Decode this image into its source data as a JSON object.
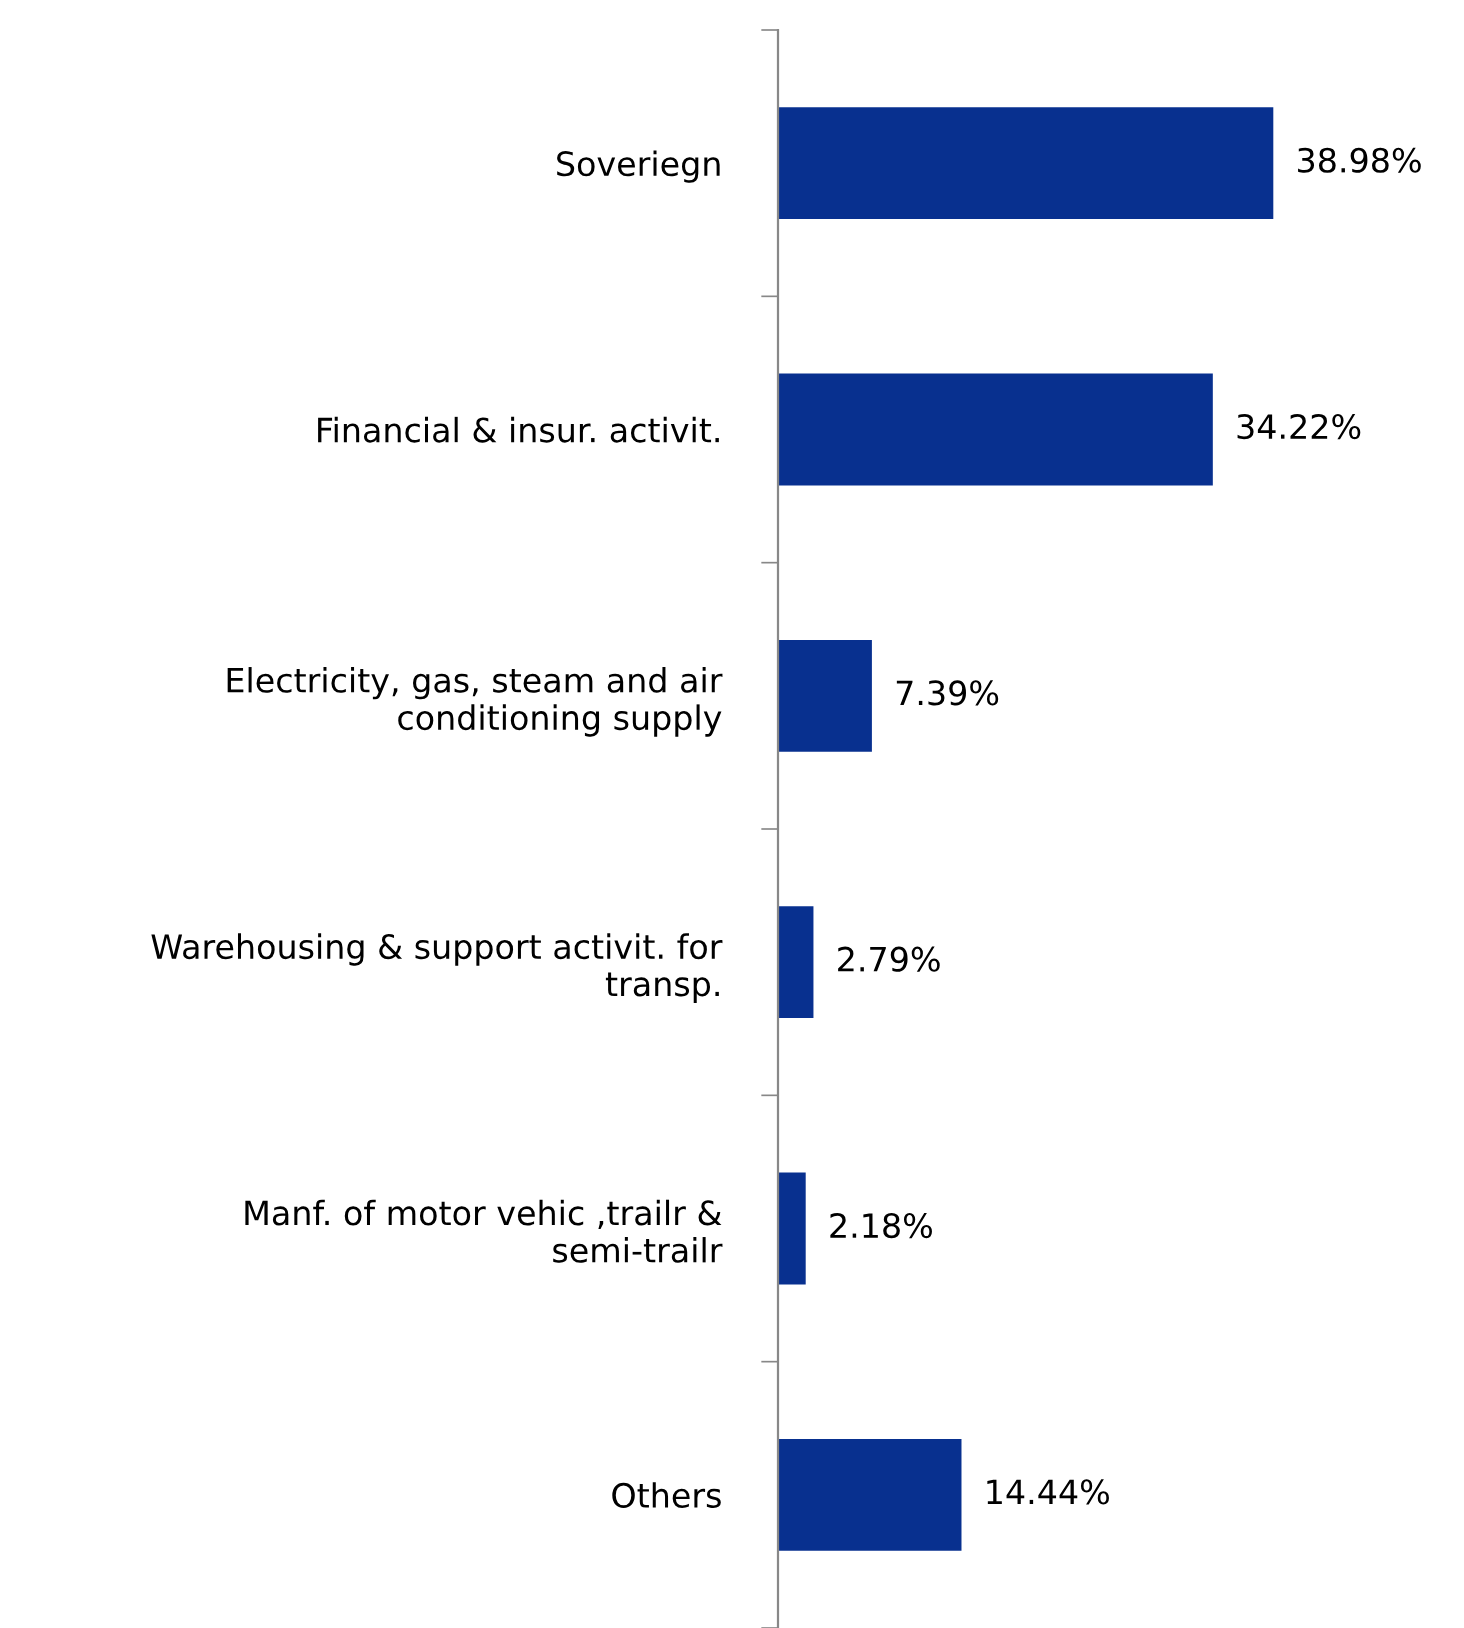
{
  "chart_data": {
    "type": "bar",
    "orientation": "horizontal",
    "categories": [
      "Soveriegn",
      "Financial & insur. activit.",
      "Electricity, gas, steam and air conditioning supply",
      "Warehousing & support activit. for transp.",
      "Manf. of motor vehic ,trailr & semi-trailr",
      "Others"
    ],
    "values": [
      38.98,
      34.22,
      7.39,
      2.79,
      2.18,
      14.44
    ],
    "value_labels": [
      "38.98%",
      "34.22%",
      "7.39%",
      "2.79%",
      "2.18%",
      "14.44%"
    ],
    "color": "#08308f",
    "grid": false,
    "legend": false
  }
}
